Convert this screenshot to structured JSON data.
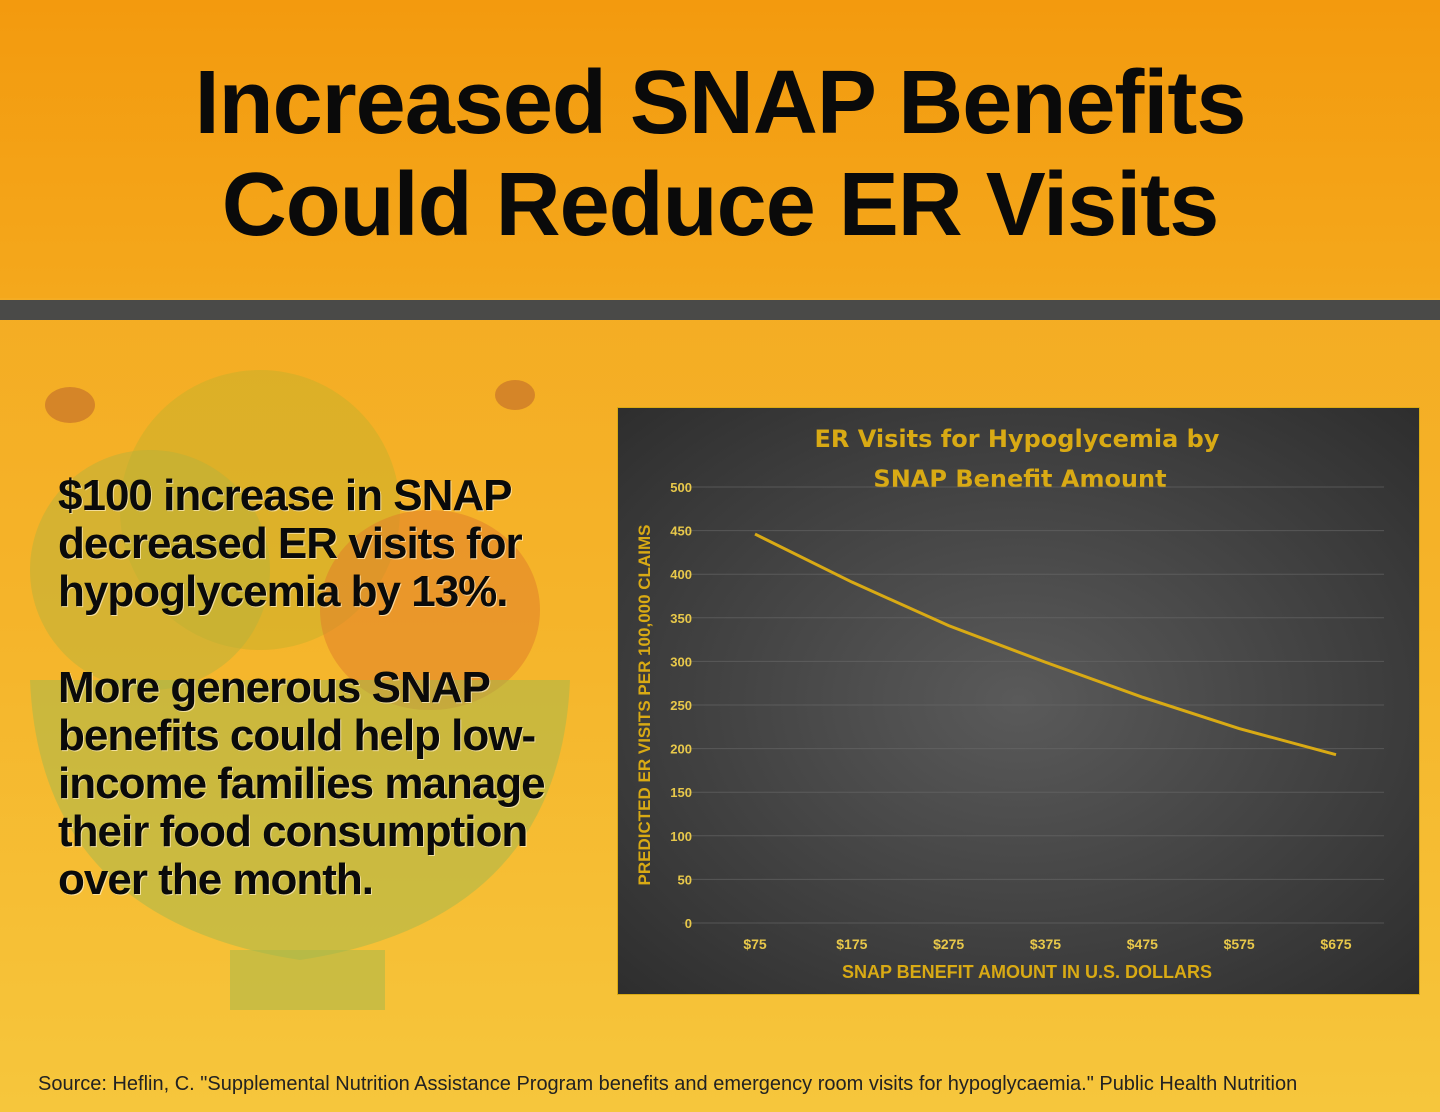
{
  "title": {
    "line1": "Increased SNAP Benefits",
    "line2": "Could Reduce ER Visits"
  },
  "body": {
    "paragraph1": "$100 increase in SNAP decreased ER visits for hypoglycemia by 13%.",
    "paragraph2": "More generous SNAP benefits could help low-income families manage their food consumption over the month."
  },
  "source": "Source: Heflin, C. \"Supplemental Nutrition Assistance Program benefits and emergency room visits for hypoglycaemia.\" Public Health Nutrition",
  "colors": {
    "accent": "#d9aa14",
    "chart_bg": "#3f3f3f",
    "header": "#f39a0e",
    "divider": "#4a4a48"
  },
  "chart_data": {
    "type": "line",
    "title_line1": "ER Visits for Hypoglycemia by",
    "title_line2": "SNAP Benefit Amount",
    "xlabel": "SNAP BENEFIT AMOUNT IN U.S. DOLLARS",
    "ylabel": "PREDICTED ER VISITS PER 100,000 CLAIMS",
    "categories": [
      "$75",
      "$175",
      "$275",
      "$375",
      "$475",
      "$575",
      "$675"
    ],
    "values": [
      446,
      391,
      341,
      299,
      259,
      223,
      193
    ],
    "ylim": [
      0,
      500
    ],
    "yticks": [
      "0",
      "50",
      "100",
      "150",
      "200",
      "250",
      "300",
      "350",
      "400",
      "450",
      "500"
    ],
    "grid": true,
    "legend": "none"
  }
}
